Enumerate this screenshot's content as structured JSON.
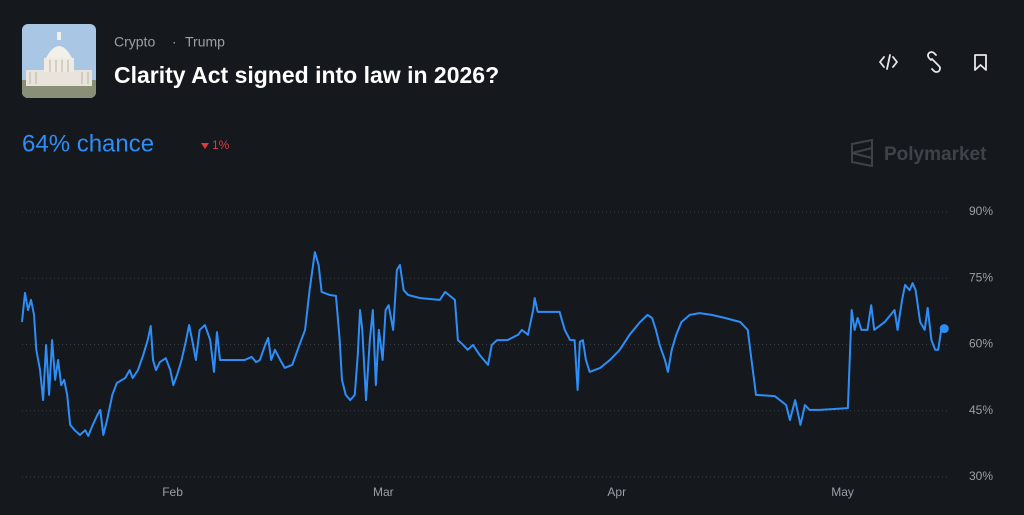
{
  "header": {
    "tags": [
      "Crypto",
      "Trump"
    ],
    "title": "Clarity Act signed into law in 2026?",
    "chance": "64% chance",
    "change": "1%",
    "brand": "Polymarket"
  },
  "chart_data": {
    "type": "line",
    "x": [
      12.0,
      12.4,
      12.8,
      13.2,
      13.6,
      13.9,
      14.4,
      14.8,
      15.2,
      15.6,
      16.0,
      16.4,
      16.8,
      17.2,
      17.6,
      18.0,
      18.4,
      19.0,
      19.7,
      20.4,
      20.8,
      21.4,
      22.0,
      22.4,
      22.8,
      23.3,
      24.0,
      24.6,
      25.7,
      26.3,
      26.7,
      27.4,
      28.1,
      28.7,
      29.1,
      29.4,
      29.8,
      30.3,
      31.1,
      31.7,
      32.1,
      32.6,
      33.2,
      33.8,
      34.2,
      34.6,
      35.1,
      35.6,
      36.3,
      37.0,
      37.5,
      37.9,
      38.3,
      39.4,
      41.6,
      42.5,
      43.1,
      43.6,
      44.3,
      44.7,
      45.1,
      45.6,
      46.3,
      46.9,
      47.9,
      48.7,
      49.6,
      50.2,
      50.9,
      51.4,
      51.8,
      52.9,
      53.7,
      54.2,
      54.5,
      55.0,
      55.6,
      56.2,
      56.6,
      56.9,
      57.2,
      57.7,
      58.2,
      58.6,
      59.0,
      59.4,
      59.9,
      60.3,
      60.7,
      61.3,
      61.8,
      62.2,
      62.7,
      63.3,
      64.9,
      67.5,
      68.2,
      69.5,
      69.9,
      70.6,
      71.2,
      71.9,
      72.8,
      73.9,
      74.4,
      75.1,
      76.5,
      77.9,
      78.4,
      79.2,
      79.9,
      80.1,
      80.5,
      83.4,
      84.1,
      84.8,
      85.4,
      85.8,
      86.1,
      86.5,
      86.9,
      87.4,
      88.8,
      90.1,
      91.4,
      92.7,
      94.1,
      95.1,
      95.7,
      96.2,
      96.7,
      97.4,
      97.8,
      98.3,
      98.9,
      99.6,
      100.7,
      102.0,
      103.6,
      105.4,
      107.4,
      108.4,
      108.9,
      109.5,
      112.0,
      113.5,
      114.0,
      114.7,
      115.4,
      116.0,
      116.6,
      118.0,
      121.7,
      122.2,
      122.6,
      123.0,
      123.5,
      124.3,
      124.8,
      125.2,
      126.6,
      127.9,
      128.3,
      128.9,
      129.3,
      129.9,
      130.3,
      130.7,
      131.3,
      131.9,
      132.3,
      132.8,
      133.3,
      133.7,
      134.1,
      134.5
    ],
    "series": [
      {
        "color": "#2d8ef7",
        "values": [
          65.1,
          71.7,
          67.8,
          70.1,
          66.7,
          58.8,
          54.2,
          47.4,
          59.9,
          48.6,
          61.0,
          52.0,
          56.5,
          50.8,
          52.0,
          48.6,
          41.8,
          40.6,
          39.5,
          40.6,
          39.3,
          41.8,
          44.0,
          45.2,
          39.5,
          42.9,
          48.6,
          51.3,
          52.4,
          54.2,
          52.4,
          54.2,
          57.6,
          61.0,
          64.2,
          56.5,
          54.2,
          56.0,
          56.9,
          54.2,
          50.8,
          53.1,
          56.5,
          61.0,
          64.4,
          61.0,
          56.5,
          63.3,
          64.4,
          61.0,
          53.8,
          62.8,
          56.5,
          56.5,
          56.5,
          57.2,
          56.0,
          56.5,
          59.9,
          61.5,
          56.5,
          58.8,
          56.5,
          54.7,
          55.4,
          59.2,
          63.3,
          72.3,
          80.9,
          78.0,
          71.9,
          71.2,
          71.0,
          61.0,
          52.0,
          48.6,
          47.4,
          48.6,
          57.6,
          67.8,
          63.3,
          47.4,
          61.0,
          67.8,
          50.8,
          63.3,
          56.5,
          67.8,
          68.9,
          63.3,
          76.9,
          78.0,
          72.3,
          71.2,
          70.5,
          70.1,
          71.9,
          70.1,
          61.0,
          59.9,
          58.8,
          59.9,
          57.6,
          55.4,
          59.9,
          61.0,
          61.0,
          62.2,
          63.3,
          62.2,
          67.8,
          70.5,
          67.4,
          67.4,
          63.3,
          61.0,
          61.0,
          49.7,
          60.6,
          61.0,
          56.5,
          53.8,
          54.7,
          56.5,
          58.8,
          62.2,
          65.1,
          66.7,
          66.0,
          63.3,
          59.9,
          56.5,
          53.8,
          58.8,
          62.2,
          65.1,
          66.7,
          67.1,
          66.7,
          66.0,
          65.1,
          63.3,
          56.5,
          48.6,
          48.3,
          46.3,
          42.9,
          47.4,
          41.8,
          46.3,
          45.2,
          45.2,
          45.6,
          67.8,
          63.3,
          66.0,
          63.3,
          63.3,
          68.9,
          63.3,
          65.1,
          67.8,
          63.3,
          70.1,
          73.5,
          72.3,
          73.9,
          72.3,
          65.1,
          63.3,
          68.3,
          61.0,
          58.8,
          58.8,
          63.3,
          63.6
        ]
      }
    ],
    "xlim": [
      12,
      135
    ],
    "xticks": [
      {
        "value": 32,
        "label": "Feb"
      },
      {
        "value": 60,
        "label": "Mar"
      },
      {
        "value": 91,
        "label": "Apr"
      },
      {
        "value": 121,
        "label": "May"
      }
    ],
    "ylim": [
      30,
      90
    ],
    "yticks": [
      {
        "value": 30,
        "label": "30%"
      },
      {
        "value": 45,
        "label": "45%"
      },
      {
        "value": 60,
        "label": "60%"
      },
      {
        "value": 75,
        "label": "75%"
      },
      {
        "value": 90,
        "label": "90%"
      }
    ],
    "grid": true
  }
}
